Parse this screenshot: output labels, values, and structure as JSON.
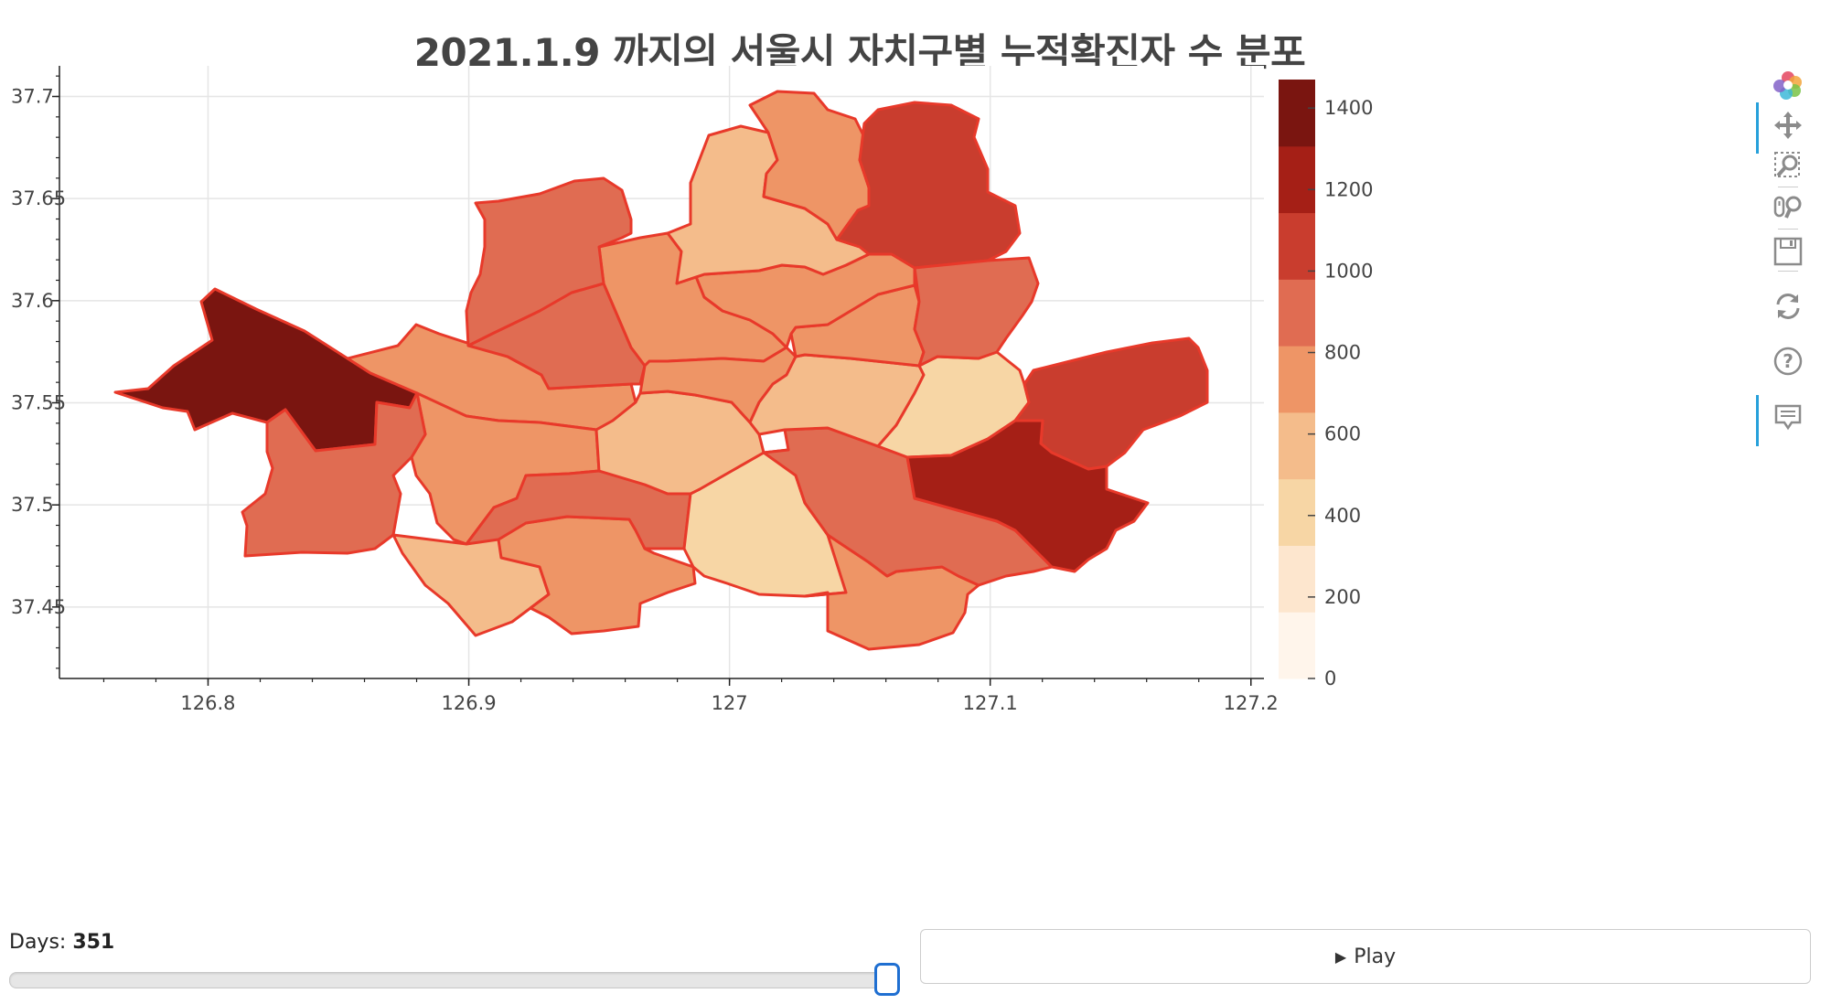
{
  "title": "2021.1.9 까지의 서울시 자치구별 누적확진자 수 분포",
  "chart_data": {
    "type": "choropleth",
    "title": "2021.1.9 까지의 서울시 자치구별 누적확진자 수 분포",
    "x_ticks": [
      "126.8",
      "126.9",
      "127",
      "127.1",
      "127.2"
    ],
    "y_ticks": [
      "37.45",
      "37.5",
      "37.55",
      "37.6",
      "37.65",
      "37.7"
    ],
    "xlim": [
      126.743,
      127.205
    ],
    "ylim": [
      37.415,
      37.715
    ],
    "colorbar": {
      "ticks": [
        "0",
        "200",
        "400",
        "600",
        "800",
        "1000",
        "1200",
        "1400"
      ],
      "range": [
        0,
        1470
      ],
      "colors": [
        "#fff5eb",
        "#fde6ce",
        "#f7d6a5",
        "#f4bc8b",
        "#ee9566",
        "#e06c52",
        "#c93d2e",
        "#a51f16",
        "#7a1510"
      ]
    },
    "districts": [
      {
        "bin": 8
      },
      {
        "bin": 4
      },
      {
        "bin": 4
      },
      {
        "bin": 5
      },
      {
        "bin": 3
      },
      {
        "bin": 4
      },
      {
        "bin": 5
      },
      {
        "bin": 2
      },
      {
        "bin": 3
      },
      {
        "bin": 4
      },
      {
        "bin": 5
      },
      {
        "bin": 5
      },
      {
        "bin": 4
      },
      {
        "bin": 4
      },
      {
        "bin": 3
      },
      {
        "bin": 2
      },
      {
        "bin": 4
      },
      {
        "bin": 4
      },
      {
        "bin": 3
      },
      {
        "bin": 5
      },
      {
        "bin": 4
      },
      {
        "bin": 6
      },
      {
        "bin": 5
      },
      {
        "bin": 6
      },
      {
        "bin": 7
      }
    ]
  },
  "toolbar": {
    "items": [
      {
        "icon": "bokeh-logo-icon",
        "active": false
      },
      {
        "icon": "pan-icon",
        "active": true
      },
      {
        "icon": "box-zoom-icon",
        "active": false
      },
      {
        "icon": "wheel-zoom-icon",
        "active": false
      },
      {
        "icon": "save-icon",
        "active": false
      },
      {
        "icon": "reset-icon",
        "active": false
      },
      {
        "icon": "help-icon",
        "active": false
      },
      {
        "icon": "hover-icon",
        "active": true
      }
    ]
  },
  "slider": {
    "label": "Days: ",
    "value": "351",
    "value_num": 351,
    "max": 351
  },
  "play_button": {
    "icon": "▶",
    "label": "Play"
  }
}
